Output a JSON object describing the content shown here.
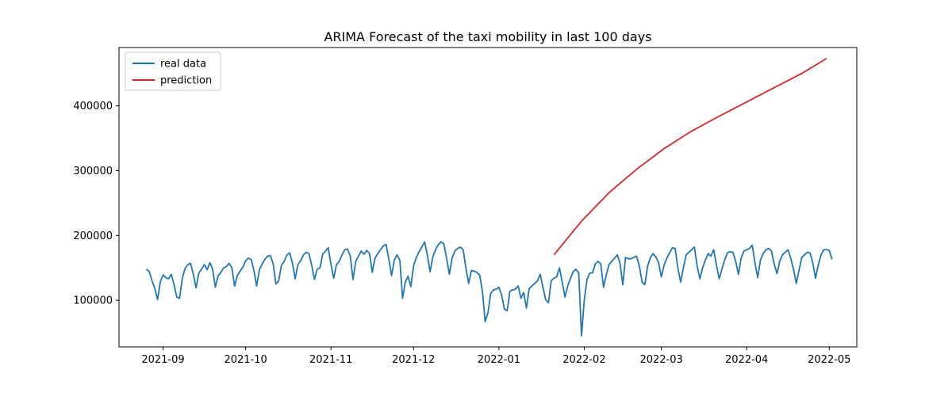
{
  "chart_data": {
    "type": "line",
    "title": "ARIMA Forecast of the taxi mobility in last 100 days",
    "xlabel": "",
    "ylabel": "",
    "x_axis": {
      "type": "date",
      "range": [
        "2021-08-16",
        "2022-05-11"
      ],
      "ticks": [
        "2021-09-01",
        "2021-10-01",
        "2021-11-01",
        "2021-12-01",
        "2022-01-01",
        "2022-02-01",
        "2022-03-01",
        "2022-04-01",
        "2022-05-01"
      ],
      "tick_labels": [
        "2021-09",
        "2021-10",
        "2021-11",
        "2021-12",
        "2022-01",
        "2022-02",
        "2022-03",
        "2022-04",
        "2022-05"
      ]
    },
    "y_axis": {
      "range": [
        28000,
        490000
      ],
      "ticks": [
        100000,
        200000,
        300000,
        400000
      ],
      "tick_labels": [
        "100000",
        "200000",
        "300000",
        "400000"
      ]
    },
    "grid": false,
    "legend": {
      "position": "top-left",
      "entries": [
        {
          "label": "real data",
          "color": "#1f77b4"
        },
        {
          "label": "prediction",
          "color": "#d62728"
        }
      ]
    },
    "series": [
      {
        "name": "real data",
        "color": "#1f77b4",
        "start_date": "2021-08-26",
        "values": [
          148000,
          144000,
          130000,
          118000,
          101000,
          128000,
          139000,
          135000,
          133000,
          140000,
          124000,
          105000,
          103000,
          134000,
          149000,
          155000,
          157000,
          140000,
          119000,
          142000,
          148000,
          155000,
          147000,
          158000,
          148000,
          120000,
          138000,
          143000,
          150000,
          152000,
          157000,
          150000,
          122000,
          138000,
          145000,
          151000,
          161000,
          165000,
          163000,
          146000,
          122000,
          147000,
          156000,
          163000,
          168000,
          169000,
          156000,
          125000,
          130000,
          154000,
          160000,
          170000,
          173000,
          157000,
          133000,
          155000,
          161000,
          170000,
          174000,
          172000,
          154000,
          132000,
          148000,
          150000,
          171000,
          176000,
          181000,
          155000,
          134000,
          155000,
          160000,
          170000,
          178000,
          179000,
          168000,
          132000,
          160000,
          168000,
          176000,
          171000,
          177000,
          172000,
          143000,
          165000,
          172000,
          178000,
          184000,
          186000,
          164000,
          138000,
          162000,
          170000,
          162000,
          103000,
          128000,
          137000,
          121000,
          153000,
          166000,
          175000,
          182000,
          190000,
          170000,
          144000,
          167000,
          178000,
          186000,
          190000,
          187000,
          165000,
          140000,
          165000,
          176000,
          180000,
          182000,
          178000,
          150000,
          126000,
          146000,
          145000,
          143000,
          139000,
          114000,
          67000,
          80000,
          110000,
          116000,
          117000,
          120000,
          108000,
          86000,
          84000,
          114000,
          116000,
          117000,
          122000,
          103000,
          112000,
          88000,
          118000,
          122000,
          126000,
          130000,
          140000,
          120000,
          101000,
          96000,
          130000,
          134000,
          136000,
          150000,
          128000,
          105000,
          122000,
          134000,
          144000,
          148000,
          142000,
          45000,
          100000,
          132000,
          142000,
          142000,
          156000,
          160000,
          156000,
          120000,
          139000,
          155000,
          160000,
          165000,
          170000,
          157000,
          124000,
          166000,
          164000,
          164000,
          166000,
          168000,
          153000,
          128000,
          124000,
          152000,
          166000,
          172000,
          167000,
          158000,
          136000,
          154000,
          165000,
          173000,
          181000,
          180000,
          150000,
          128000,
          150000,
          170000,
          174000,
          178000,
          182000,
          153000,
          133000,
          150000,
          162000,
          172000,
          168000,
          178000,
          155000,
          133000,
          148000,
          162000,
          173000,
          175000,
          174000,
          160000,
          140000,
          165000,
          176000,
          178000,
          180000,
          185000,
          158000,
          135000,
          162000,
          172000,
          178000,
          180000,
          176000,
          156000,
          141000,
          160000,
          170000,
          174000,
          178000,
          165000,
          148000,
          126000,
          146000,
          166000,
          170000,
          174000,
          173000,
          158000,
          134000,
          154000,
          170000,
          178000,
          178000,
          177000,
          163000
        ]
      },
      {
        "name": "prediction",
        "color": "#d62728",
        "start_date": "2022-01-21",
        "days": 100,
        "values_at_days": [
          {
            "day": 0,
            "value": 170000
          },
          {
            "day": 10,
            "value": 222000
          },
          {
            "day": 20,
            "value": 266000
          },
          {
            "day": 30,
            "value": 302000
          },
          {
            "day": 40,
            "value": 334000
          },
          {
            "day": 50,
            "value": 361000
          },
          {
            "day": 60,
            "value": 384000
          },
          {
            "day": 70,
            "value": 406000
          },
          {
            "day": 80,
            "value": 428000
          },
          {
            "day": 90,
            "value": 450000
          },
          {
            "day": 99,
            "value": 473000
          }
        ]
      }
    ]
  }
}
